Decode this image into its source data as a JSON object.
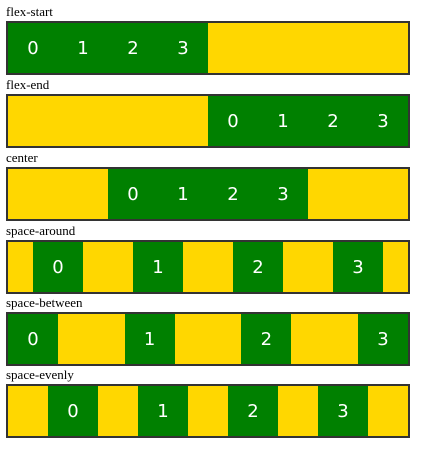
{
  "colors": {
    "container_background": "#FFD700",
    "item_background": "#008000",
    "item_text": "#FFFFFF",
    "border": "#333333"
  },
  "sections": [
    {
      "label": "flex-start",
      "justify": "flex-start",
      "items": [
        "0",
        "1",
        "2",
        "3"
      ]
    },
    {
      "label": "flex-end",
      "justify": "flex-end",
      "items": [
        "0",
        "1",
        "2",
        "3"
      ]
    },
    {
      "label": "center",
      "justify": "center",
      "items": [
        "0",
        "1",
        "2",
        "3"
      ]
    },
    {
      "label": "space-around",
      "justify": "space-around",
      "items": [
        "0",
        "1",
        "2",
        "3"
      ]
    },
    {
      "label": "space-between",
      "justify": "space-between",
      "items": [
        "0",
        "1",
        "2",
        "3"
      ]
    },
    {
      "label": "space-evenly",
      "justify": "space-evenly",
      "items": [
        "0",
        "1",
        "2",
        "3"
      ]
    }
  ]
}
